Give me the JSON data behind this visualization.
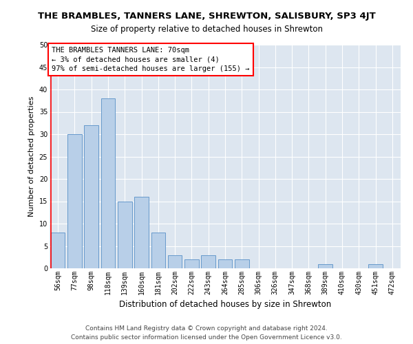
{
  "title": "THE BRAMBLES, TANNERS LANE, SHREWTON, SALISBURY, SP3 4JT",
  "subtitle": "Size of property relative to detached houses in Shrewton",
  "xlabel": "Distribution of detached houses by size in Shrewton",
  "ylabel": "Number of detached properties",
  "categories": [
    "56sqm",
    "77sqm",
    "98sqm",
    "118sqm",
    "139sqm",
    "160sqm",
    "181sqm",
    "202sqm",
    "222sqm",
    "243sqm",
    "264sqm",
    "285sqm",
    "306sqm",
    "326sqm",
    "347sqm",
    "368sqm",
    "389sqm",
    "410sqm",
    "430sqm",
    "451sqm",
    "472sqm"
  ],
  "values": [
    8,
    30,
    32,
    38,
    15,
    16,
    8,
    3,
    2,
    3,
    2,
    2,
    0,
    0,
    0,
    0,
    1,
    0,
    0,
    1,
    0
  ],
  "bar_color": "#b8cfe8",
  "bar_edge_color": "#6699cc",
  "annotation_box_text": "THE BRAMBLES TANNERS LANE: 70sqm\n← 3% of detached houses are smaller (4)\n97% of semi-detached houses are larger (155) →",
  "annotation_box_color": "white",
  "annotation_box_edge_color": "red",
  "vline_color": "red",
  "ylim": [
    0,
    50
  ],
  "yticks": [
    0,
    5,
    10,
    15,
    20,
    25,
    30,
    35,
    40,
    45,
    50
  ],
  "bg_color": "#dde6f0",
  "grid_color": "#c0ccd8",
  "footer_text": "Contains HM Land Registry data © Crown copyright and database right 2024.\nContains public sector information licensed under the Open Government Licence v3.0.",
  "title_fontsize": 9.5,
  "subtitle_fontsize": 8.5,
  "xlabel_fontsize": 8.5,
  "ylabel_fontsize": 8,
  "tick_fontsize": 7,
  "annotation_fontsize": 7.5,
  "footer_fontsize": 6.5
}
